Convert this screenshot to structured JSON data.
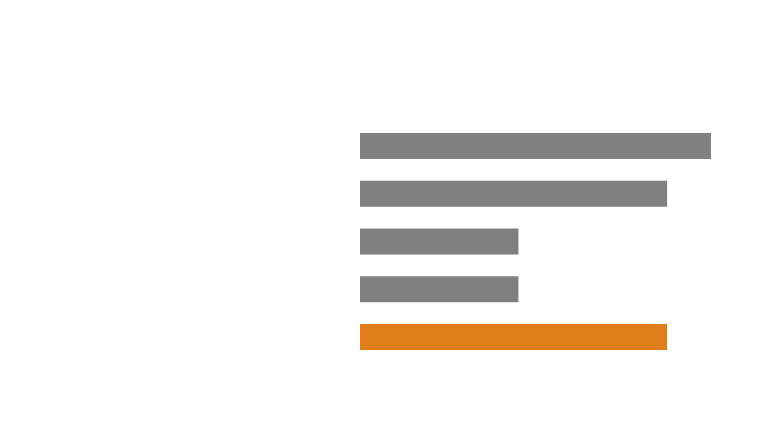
{
  "chart_data": {
    "type": "bar",
    "orientation": "horizontal",
    "values": [
      7.2,
      6.3,
      3.25,
      3.25,
      6.3
    ],
    "xlim": [
      0,
      7.2
    ],
    "colors": {
      "default": "#808080",
      "highlight": "#e07e1b"
    },
    "highlight_index": 4,
    "grid": false,
    "legend": "none"
  }
}
